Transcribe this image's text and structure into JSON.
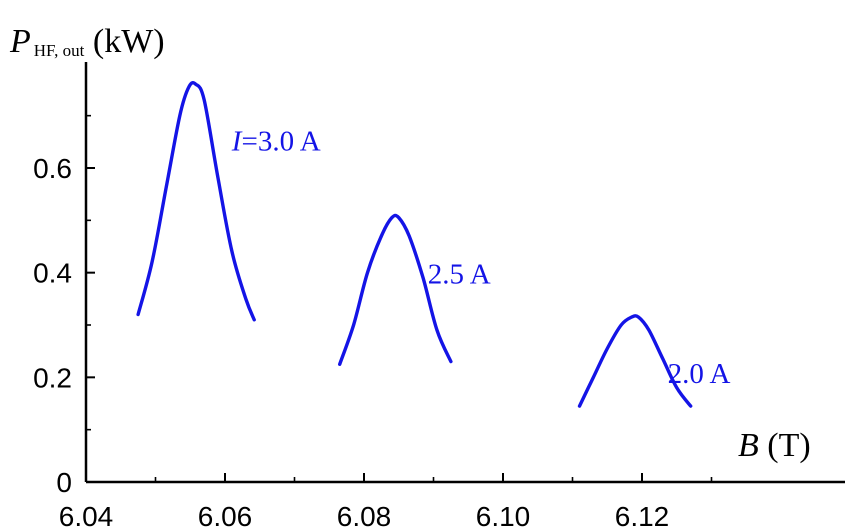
{
  "chart_data": {
    "type": "line",
    "x_axis": {
      "label_symbol": "B",
      "label_unit": " (T)",
      "range": [
        6.04,
        6.136
      ],
      "ticks": [
        "6.04",
        "6.06",
        "6.08",
        "6.10",
        "6.12"
      ]
    },
    "y_axis": {
      "label_symbol": "P",
      "label_subscript": "HF, out",
      "label_unit": " (kW)",
      "range": [
        0,
        0.8
      ],
      "ticks": [
        "0",
        "0.2",
        "0.4",
        "0.6"
      ]
    },
    "grid": false,
    "legend": "none",
    "line_color": "#1414e6",
    "series": [
      {
        "label_italic": "I",
        "label_rest": "=3.0 A",
        "x": [
          6.0475,
          6.0495,
          6.0515,
          6.0535,
          6.0548,
          6.0558,
          6.057,
          6.059,
          6.061,
          6.063,
          6.0642
        ],
        "y": [
          0.32,
          0.42,
          0.56,
          0.7,
          0.755,
          0.76,
          0.73,
          0.58,
          0.44,
          0.35,
          0.31
        ]
      },
      {
        "label_italic": "",
        "label_rest": "2.5 A",
        "x": [
          6.0765,
          6.0785,
          6.0805,
          6.0825,
          6.084,
          6.085,
          6.0865,
          6.0885,
          6.0905,
          6.0925
        ],
        "y": [
          0.225,
          0.3,
          0.4,
          0.47,
          0.505,
          0.505,
          0.47,
          0.39,
          0.29,
          0.23
        ]
      },
      {
        "label_italic": "",
        "label_rest": "2.0 A",
        "x": [
          6.111,
          6.113,
          6.115,
          6.117,
          6.1185,
          6.1195,
          6.121,
          6.123,
          6.125,
          6.127
        ],
        "y": [
          0.145,
          0.2,
          0.255,
          0.3,
          0.315,
          0.315,
          0.29,
          0.235,
          0.18,
          0.145
        ]
      }
    ]
  }
}
